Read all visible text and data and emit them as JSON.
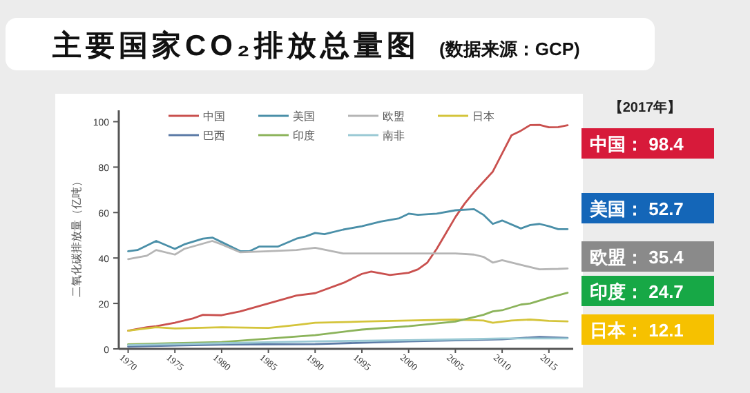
{
  "chart_data": {
    "type": "line",
    "title": "主要国家CO₂排放总量图",
    "subtitle": "(数据来源：GCP)",
    "ylabel": "二氧化碳排放量（亿吨）",
    "xlim": [
      1969,
      2017.6
    ],
    "xticks": [
      1970,
      1975,
      1980,
      1985,
      1990,
      1995,
      2000,
      2005,
      2010,
      2015
    ],
    "ylim": [
      0,
      105
    ],
    "yticks": [
      0,
      20,
      40,
      60,
      80,
      100
    ],
    "grid": false,
    "legend": "top",
    "marker": "none",
    "line_style": "solid",
    "series": [
      {
        "name": "中国",
        "color": "#c9504e",
        "x": [
          1970,
          1972,
          1973,
          1975,
          1977,
          1978,
          1980,
          1982,
          1985,
          1988,
          1990,
          1993,
          1995,
          1996,
          1998,
          2000,
          2001,
          2002,
          2003,
          2004,
          2005,
          2006,
          2007,
          2008,
          2009,
          2010,
          2011,
          2012,
          2013,
          2014,
          2015,
          2016,
          2017
        ],
        "values": [
          8,
          9.5,
          10,
          11.5,
          13.5,
          15,
          14.8,
          16.5,
          20,
          23.5,
          24.5,
          29,
          33,
          34,
          32.5,
          33.5,
          35,
          38,
          44,
          51,
          58,
          64,
          69,
          73.5,
          78,
          86,
          94,
          96,
          98.5,
          98.6,
          97.5,
          97.6,
          98.4
        ]
      },
      {
        "name": "美国",
        "color": "#4a8fa8",
        "x": [
          1970,
          1971,
          1973,
          1975,
          1976,
          1978,
          1979,
          1980,
          1982,
          1983,
          1984,
          1986,
          1988,
          1989,
          1990,
          1991,
          1993,
          1995,
          1997,
          1999,
          2000,
          2001,
          2003,
          2005,
          2007,
          2008,
          2009,
          2010,
          2012,
          2013,
          2014,
          2015,
          2016,
          2017
        ],
        "values": [
          43,
          43.5,
          47.5,
          44,
          46,
          48.5,
          49,
          47,
          43,
          43,
          45,
          45,
          48.5,
          49.5,
          51,
          50.5,
          52.5,
          54,
          56,
          57.5,
          59.5,
          59,
          59.5,
          61,
          61.5,
          59,
          55,
          56.5,
          53,
          54.5,
          55,
          54,
          52.7,
          52.7
        ]
      },
      {
        "name": "欧盟",
        "color": "#b5b5b5",
        "x": [
          1970,
          1972,
          1973,
          1975,
          1976,
          1979,
          1980,
          1982,
          1985,
          1988,
          1990,
          1993,
          1995,
          2000,
          2005,
          2007,
          2008,
          2009,
          2010,
          2012,
          2014,
          2016,
          2017
        ],
        "values": [
          39.5,
          41,
          43.5,
          41.5,
          44,
          47.5,
          46,
          42.5,
          43,
          43.5,
          44.5,
          42,
          42,
          42,
          42,
          41.5,
          40.5,
          38,
          39,
          37,
          35,
          35.2,
          35.4
        ]
      },
      {
        "name": "日本",
        "color": "#d4c43a",
        "x": [
          1970,
          1973,
          1975,
          1980,
          1985,
          1988,
          1990,
          1995,
          2000,
          2005,
          2008,
          2009,
          2011,
          2013,
          2015,
          2017
        ],
        "values": [
          8,
          9.5,
          9,
          9.5,
          9.2,
          10.5,
          11.5,
          12,
          12.5,
          12.9,
          12.5,
          11.5,
          12.5,
          12.9,
          12.3,
          12.1
        ]
      },
      {
        "name": "巴西",
        "color": "#5b7aa6",
        "x": [
          1970,
          1980,
          1990,
          2000,
          2010,
          2014,
          2017
        ],
        "values": [
          1,
          1.9,
          2.1,
          3.3,
          4.2,
          5.3,
          4.8
        ]
      },
      {
        "name": "印度",
        "color": "#8bb35a",
        "x": [
          1970,
          1975,
          1980,
          1985,
          1990,
          1995,
          2000,
          2005,
          2008,
          2009,
          2010,
          2012,
          2013,
          2015,
          2017
        ],
        "values": [
          2,
          2.5,
          3,
          4.5,
          6,
          8.5,
          10,
          12,
          15,
          16.5,
          17,
          19.5,
          20,
          22.5,
          24.7
        ]
      },
      {
        "name": "南非",
        "color": "#9ac9d4",
        "x": [
          1970,
          1980,
          1990,
          2000,
          2010,
          2017
        ],
        "values": [
          1.6,
          2.5,
          3.3,
          3.8,
          4.6,
          4.6
        ]
      }
    ],
    "annotations": [
      "【2017年】",
      "中国：  98.4",
      "美国：  52.7",
      "欧盟：  35.4",
      "印度：  24.7",
      "日本：  12.1"
    ]
  }
}
